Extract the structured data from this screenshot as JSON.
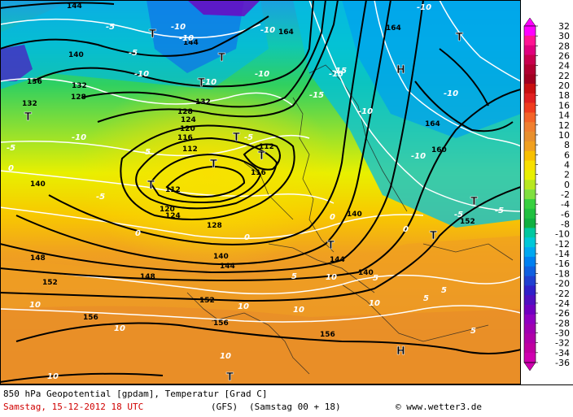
{
  "map": {
    "contour_labels_black": [
      "144",
      "144",
      "140",
      "136",
      "132",
      "132",
      "132",
      "128",
      "128",
      "128",
      "124",
      "124",
      "120",
      "120",
      "116",
      "116",
      "112",
      "112",
      "112",
      "140",
      "140",
      "144",
      "144",
      "148",
      "148",
      "152",
      "152",
      "152",
      "156",
      "156",
      "156",
      "160",
      "164",
      "164",
      "164",
      "140",
      "140"
    ],
    "temperature_labels_white": [
      "-5",
      "-5",
      "-10",
      "-10",
      "-10",
      "-10",
      "-15",
      "-15",
      "-10",
      "-10",
      "-5",
      "-5",
      "-5",
      "-10",
      "-10",
      "-5",
      "-5",
      "-5",
      "0",
      "0",
      "0",
      "0",
      "0",
      "5",
      "5",
      "5",
      "5",
      "5",
      "10",
      "10",
      "10",
      "10",
      "10",
      "10",
      "10",
      "10",
      "-15",
      "-10",
      "-10",
      "-10"
    ],
    "pressure_symbols": [
      "T",
      "T",
      "T",
      "T",
      "T",
      "T",
      "T",
      "T",
      "T",
      "T",
      "T",
      "T",
      "H",
      "H",
      "T"
    ]
  },
  "legend": {
    "ticks": [
      "32",
      "30",
      "28",
      "26",
      "24",
      "22",
      "20",
      "18",
      "16",
      "14",
      "12",
      "10",
      "8",
      "6",
      "4",
      "2",
      "0",
      "-2",
      "-4",
      "-6",
      "-8",
      "-10",
      "-12",
      "-14",
      "-16",
      "-18",
      "-20",
      "-22",
      "-24",
      "-26",
      "-28",
      "-30",
      "-32",
      "-34",
      "-36"
    ],
    "colors": [
      "#ff00ff",
      "#ff1493",
      "#e0007e",
      "#c8004e",
      "#b00030",
      "#a00020",
      "#c81010",
      "#e02020",
      "#f03c1e",
      "#f46428",
      "#f08030",
      "#e8902e",
      "#f0a020",
      "#f8c000",
      "#f8e000",
      "#e8f000",
      "#b8e820",
      "#80e040",
      "#38d040",
      "#20c040",
      "#10b040",
      "#00c8a0",
      "#00c8d8",
      "#00a8f0",
      "#0080f0",
      "#1060e0",
      "#2040d0",
      "#3020c8",
      "#5010c0",
      "#7000c0",
      "#9000c0",
      "#a000b0",
      "#b000a8",
      "#c000a0",
      "#d000b0"
    ]
  },
  "footer": {
    "line1": "850 hPa Geopotential [gpdam], Temperatur [Grad C]",
    "date": "Samstag, 15-12-2012  18 UTC",
    "model": "(GFS)",
    "run": "(Samstag 00 + 18)",
    "credit": "© www.wetter3.de"
  }
}
